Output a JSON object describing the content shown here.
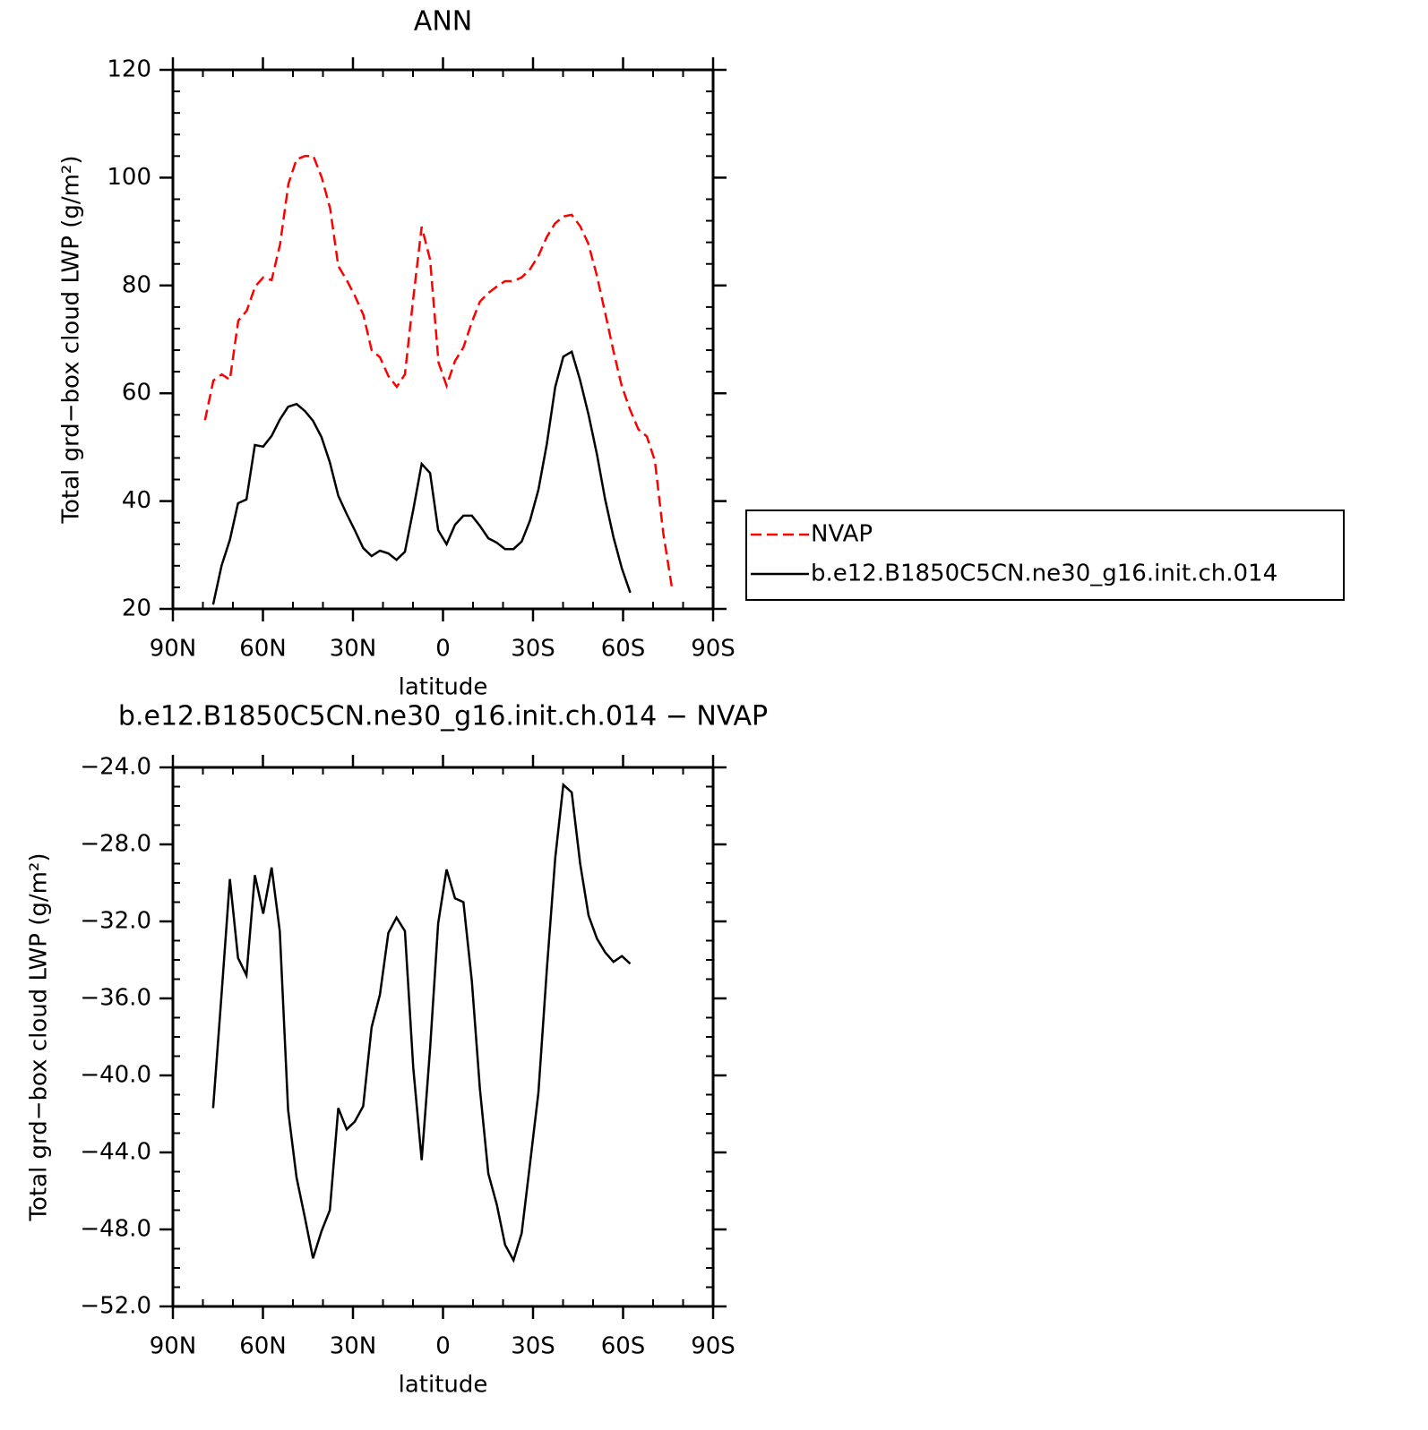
{
  "chart_data": [
    {
      "type": "line",
      "title": "ANN",
      "xlabel": "latitude",
      "ylabel": "Total grd−box cloud LWP (g/m²)",
      "xlim": [
        90,
        -90
      ],
      "ylim": [
        20,
        120
      ],
      "xticks": [
        {
          "value": 90,
          "label": "90N"
        },
        {
          "value": 60,
          "label": "60N"
        },
        {
          "value": 30,
          "label": "30N"
        },
        0,
        {
          "value": -30,
          "label": "30S"
        },
        {
          "value": -60,
          "label": "60S"
        },
        {
          "value": -90,
          "label": "90S"
        }
      ],
      "yticks": [
        20,
        40,
        60,
        80,
        100,
        120
      ],
      "legend": "right",
      "series": [
        {
          "name": "NVAP",
          "color": "#ff0000",
          "dashed": true,
          "x": [
            79.3,
            76.5,
            73.7,
            71.0,
            68.2,
            65.4,
            62.6,
            59.9,
            57.1,
            54.3,
            51.5,
            48.8,
            46.0,
            43.2,
            40.4,
            37.6,
            34.9,
            32.1,
            29.3,
            26.5,
            23.8,
            21.0,
            18.2,
            15.4,
            12.7,
            9.9,
            7.1,
            4.3,
            1.5,
            -1.2,
            -4.0,
            -6.8,
            -9.6,
            -12.3,
            -15.1,
            -17.9,
            -20.7,
            -23.4,
            -26.2,
            -29.0,
            -31.8,
            -34.6,
            -37.3,
            -40.1,
            -42.9,
            -45.7,
            -48.4,
            -51.2,
            -54.0,
            -56.8,
            -59.5,
            -62.3,
            -65.1,
            -67.9,
            -70.6,
            -73.4,
            -76.2
          ],
          "values": [
            55,
            62.4,
            63.5,
            62.5,
            73.5,
            75.3,
            79.8,
            81.5,
            81,
            87.6,
            98.9,
            103.4,
            104,
            104,
            100,
            94.3,
            83.6,
            81,
            78,
            74.5,
            68,
            66.7,
            63.2,
            61.2,
            63.5,
            77.6,
            90.9,
            84.8,
            65.7,
            61.4,
            66,
            68.5,
            73.2,
            77,
            78.6,
            79.8,
            80.8,
            80.8,
            81.5,
            83,
            85.5,
            89,
            91.5,
            92.8,
            93.1,
            91,
            87.8,
            82,
            75,
            67.8,
            61.5,
            57,
            53.3,
            52,
            47.5,
            34,
            24.2
          ]
        },
        {
          "name": "b.e12.B1850C5CN.ne30_g16.init.ch.014",
          "color": "#000000",
          "dashed": false,
          "x": [
            76.6,
            73.8,
            71.0,
            68.3,
            65.5,
            62.7,
            59.9,
            57.1,
            54.4,
            51.6,
            48.8,
            46.0,
            43.3,
            40.5,
            37.7,
            34.9,
            32.1,
            29.4,
            26.6,
            23.8,
            21.0,
            18.2,
            15.5,
            12.7,
            9.9,
            7.1,
            4.3,
            1.6,
            -1.2,
            -4.0,
            -6.8,
            -9.6,
            -12.3,
            -15.1,
            -17.9,
            -20.7,
            -23.5,
            -26.2,
            -29.0,
            -31.8,
            -34.6,
            -37.4,
            -40.1,
            -42.9,
            -45.7,
            -48.5,
            -51.3,
            -54.0,
            -56.8,
            -59.6,
            -62.4
          ],
          "values": [
            20.8,
            28,
            32.8,
            39.6,
            40.3,
            50.4,
            50.1,
            52.1,
            55.1,
            57.5,
            58,
            56.7,
            54.9,
            51.9,
            47.2,
            41,
            37.6,
            34.6,
            31.3,
            29.8,
            30.8,
            30.3,
            29.1,
            30.6,
            38.4,
            46.9,
            45.2,
            34.6,
            32,
            35.6,
            37.3,
            37.3,
            35.4,
            33.1,
            32.3,
            31.1,
            31.1,
            32.5,
            36.4,
            42.1,
            50.6,
            61.2,
            66.8,
            67.7,
            62.4,
            56,
            48.6,
            40.4,
            33.3,
            27.5,
            23
          ]
        }
      ]
    },
    {
      "type": "line",
      "title": "b.e12.B1850C5CN.ne30_g16.init.ch.014 − NVAP",
      "xlabel": "latitude",
      "ylabel": "Total grd−box cloud LWP (g/m²)",
      "xlim": [
        90,
        -90
      ],
      "ylim": [
        -52,
        -24
      ],
      "xticks": [
        {
          "value": 90,
          "label": "90N"
        },
        {
          "value": 60,
          "label": "60N"
        },
        {
          "value": 30,
          "label": "30N"
        },
        0,
        {
          "value": -30,
          "label": "30S"
        },
        {
          "value": -60,
          "label": "60S"
        },
        {
          "value": -90,
          "label": "90S"
        }
      ],
      "yticks": [
        {
          "value": -52,
          "label": "−52.0"
        },
        {
          "value": -48,
          "label": "−48.0"
        },
        {
          "value": -44,
          "label": "−44.0"
        },
        {
          "value": -40,
          "label": "−40.0"
        },
        {
          "value": -36,
          "label": "−36.0"
        },
        {
          "value": -32,
          "label": "−32.0"
        },
        {
          "value": -28,
          "label": "−28.0"
        },
        {
          "value": -24,
          "label": "−24.0"
        }
      ],
      "series": [
        {
          "color": "#000000",
          "dashed": false,
          "x": [
            76.6,
            73.8,
            71.0,
            68.3,
            65.5,
            62.7,
            59.9,
            57.1,
            54.4,
            51.6,
            48.8,
            46.0,
            43.3,
            40.5,
            37.7,
            34.9,
            32.1,
            29.4,
            26.6,
            23.8,
            21.0,
            18.2,
            15.5,
            12.7,
            9.9,
            7.1,
            4.3,
            1.6,
            -1.2,
            -4.0,
            -6.8,
            -9.6,
            -12.3,
            -15.1,
            -17.9,
            -20.7,
            -23.5,
            -26.2,
            -29.0,
            -31.8,
            -34.6,
            -37.4,
            -40.1,
            -42.9,
            -45.7,
            -48.5,
            -51.3,
            -54.0,
            -56.8,
            -59.6,
            -62.4
          ],
          "values": [
            -41.7,
            -35.8,
            -29.8,
            -33.9,
            -34.8,
            -29.6,
            -31.6,
            -29.2,
            -32.5,
            -41.8,
            -45.3,
            -47.4,
            -49.5,
            -48.1,
            -47,
            -41.7,
            -42.8,
            -42.4,
            -41.6,
            -37.5,
            -35.8,
            -32.6,
            -31.8,
            -32.5,
            -39.6,
            -44.4,
            -38.6,
            -32.1,
            -29.3,
            -30.8,
            -31,
            -35.1,
            -40.7,
            -45.1,
            -46.7,
            -48.8,
            -49.6,
            -48.2,
            -44.6,
            -40.9,
            -34.5,
            -28.7,
            -24.9,
            -25.3,
            -29,
            -31.7,
            -32.9,
            -33.6,
            -34.1,
            -33.8,
            -34.2
          ]
        }
      ]
    }
  ]
}
